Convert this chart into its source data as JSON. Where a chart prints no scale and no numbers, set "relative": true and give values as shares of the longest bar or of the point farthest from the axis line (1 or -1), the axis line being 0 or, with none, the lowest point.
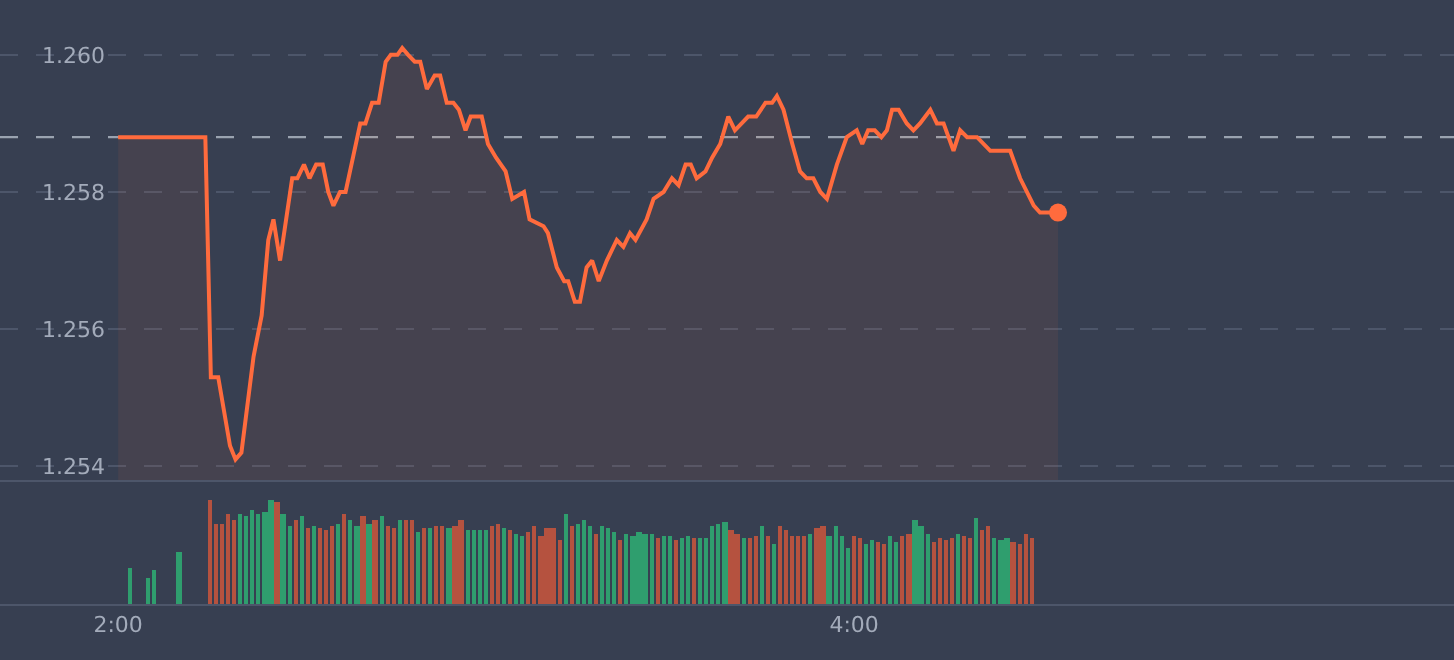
{
  "chart_data": [
    {
      "type": "area",
      "xlim": [
        1.679,
        5.63
      ],
      "ylim": [
        1.2538,
        1.2608
      ],
      "yticks": [
        {
          "value": 1.254,
          "label": "1.254"
        },
        {
          "value": 1.256,
          "label": "1.256"
        },
        {
          "value": 1.258,
          "label": "1.258"
        },
        {
          "value": 1.26,
          "label": "1.260"
        }
      ],
      "grid": "y",
      "tick_labels": "y",
      "ref_lines": [
        {
          "axis": "y",
          "value": 1.2588,
          "color": "#9aa3b0",
          "line_style": "dashed"
        }
      ],
      "series": [
        {
          "color": "#ff6b3d",
          "x": [
            2.0,
            2.237,
            2.252,
            2.272,
            2.304,
            2.319,
            2.335,
            2.368,
            2.39,
            2.408,
            2.422,
            2.44,
            2.473,
            2.487,
            2.505,
            2.52,
            2.538,
            2.556,
            2.571,
            2.585,
            2.603,
            2.618,
            2.658,
            2.672,
            2.69,
            2.708,
            2.727,
            2.741,
            2.759,
            2.772,
            2.788,
            2.806,
            2.821,
            2.839,
            2.86,
            2.875,
            2.893,
            2.911,
            2.926,
            2.944,
            2.958,
            2.973,
            2.988,
            3.005,
            3.027,
            3.053,
            3.071,
            3.103,
            3.118,
            3.156,
            3.168,
            3.192,
            3.212,
            3.223,
            3.241,
            3.255,
            3.273,
            3.288,
            3.306,
            3.328,
            3.355,
            3.373,
            3.391,
            3.406,
            3.436,
            3.455,
            3.482,
            3.505,
            3.523,
            3.542,
            3.556,
            3.572,
            3.596,
            3.614,
            3.636,
            3.658,
            3.676,
            3.712,
            3.734,
            3.759,
            3.777,
            3.79,
            3.808,
            3.832,
            3.853,
            3.871,
            3.889,
            3.908,
            3.926,
            3.953,
            3.98,
            4.007,
            4.022,
            4.038,
            4.056,
            4.074,
            4.089,
            4.103,
            4.121,
            4.143,
            4.161,
            4.179,
            4.207,
            4.225,
            4.243,
            4.27,
            4.288,
            4.307,
            4.334,
            4.37,
            4.407,
            4.424,
            4.451,
            4.488,
            4.505,
            4.554
          ],
          "values": [
            1.2588,
            1.2588,
            1.2553,
            1.2553,
            1.2543,
            1.2541,
            1.2542,
            1.2556,
            1.2562,
            1.2573,
            1.2576,
            1.257,
            1.2582,
            1.2582,
            1.2584,
            1.2582,
            1.2584,
            1.2584,
            1.258,
            1.2578,
            1.258,
            1.258,
            1.259,
            1.259,
            1.2593,
            1.2593,
            1.2599,
            1.26,
            1.26,
            1.2601,
            1.26,
            1.2599,
            1.2599,
            1.2595,
            1.2597,
            1.2597,
            1.2593,
            1.2593,
            1.2592,
            1.2589,
            1.2591,
            1.2591,
            1.2591,
            1.2587,
            1.2585,
            1.2583,
            1.2579,
            1.258,
            1.2576,
            1.2575,
            1.2574,
            1.2569,
            1.2567,
            1.2567,
            1.2564,
            1.2564,
            1.2569,
            1.257,
            1.2567,
            1.257,
            1.2573,
            1.2572,
            1.2574,
            1.2573,
            1.2576,
            1.2579,
            1.258,
            1.2582,
            1.2581,
            1.2584,
            1.2584,
            1.2582,
            1.2583,
            1.2585,
            1.2587,
            1.2591,
            1.2589,
            1.2591,
            1.2591,
            1.2593,
            1.2593,
            1.2594,
            1.2592,
            1.2587,
            1.2583,
            1.2582,
            1.2582,
            1.258,
            1.2579,
            1.2584,
            1.2588,
            1.2589,
            1.2587,
            1.2589,
            1.2589,
            1.2588,
            1.2589,
            1.2592,
            1.2592,
            1.259,
            1.2589,
            1.259,
            1.2592,
            1.259,
            1.259,
            1.2586,
            1.2589,
            1.2588,
            1.2588,
            1.2586,
            1.2586,
            1.2586,
            1.2582,
            1.2578,
            1.2577,
            1.2577
          ]
        },
        {
          "type": "scatter",
          "color": "#ff6b3d",
          "marker": "circle",
          "x": [
            4.554
          ],
          "values": [
            1.2577
          ]
        }
      ]
    },
    {
      "type": "bar",
      "relative": true,
      "xlim": [
        1.679,
        5.63
      ],
      "xticks": [
        {
          "value": 2,
          "label": "2:00"
        },
        {
          "value": 4,
          "label": "4:00"
        }
      ],
      "tick_labels": "x",
      "x": [
        2.033,
        2.083,
        2.1,
        2.167,
        2.25,
        2.267,
        2.283,
        2.3,
        2.317,
        2.333,
        2.35,
        2.367,
        2.383,
        2.4,
        2.417,
        2.433,
        2.45,
        2.467,
        2.483,
        2.5,
        2.517,
        2.533,
        2.55,
        2.567,
        2.583,
        2.6,
        2.617,
        2.633,
        2.65,
        2.667,
        2.683,
        2.7,
        2.717,
        2.733,
        2.75,
        2.767,
        2.783,
        2.8,
        2.817,
        2.833,
        2.85,
        2.867,
        2.883,
        2.9,
        2.917,
        2.933,
        2.95,
        2.967,
        2.983,
        3,
        3.017,
        3.033,
        3.05,
        3.067,
        3.083,
        3.1,
        3.117,
        3.133,
        3.15,
        3.167,
        3.183,
        3.2,
        3.217,
        3.233,
        3.25,
        3.267,
        3.283,
        3.3,
        3.317,
        3.333,
        3.35,
        3.367,
        3.383,
        3.4,
        3.417,
        3.433,
        3.45,
        3.467,
        3.483,
        3.5,
        3.517,
        3.533,
        3.55,
        3.567,
        3.583,
        3.6,
        3.617,
        3.633,
        3.65,
        3.667,
        3.683,
        3.7,
        3.717,
        3.733,
        3.75,
        3.767,
        3.783,
        3.8,
        3.817,
        3.833,
        3.85,
        3.867,
        3.883,
        3.9,
        3.917,
        3.933,
        3.95,
        3.967,
        3.983,
        4,
        4.017,
        4.033,
        4.05,
        4.067,
        4.083,
        4.1,
        4.117,
        4.133,
        4.15,
        4.167,
        4.183,
        4.2,
        4.217,
        4.233,
        4.25,
        4.267,
        4.283,
        4.3,
        4.317,
        4.333,
        4.35,
        4.367,
        4.383,
        4.4,
        4.417,
        4.433,
        4.45,
        4.467,
        4.483
      ],
      "values": [
        0.34,
        0.26,
        0.32,
        0.51,
        1.0,
        0.78,
        0.78,
        0.86,
        0.8,
        0.86,
        0.84,
        0.9,
        0.86,
        0.89,
        1.0,
        0.98,
        0.86,
        0.75,
        0.81,
        0.84,
        0.74,
        0.76,
        0.74,
        0.72,
        0.76,
        0.78,
        0.86,
        0.8,
        0.75,
        0.84,
        0.78,
        0.8,
        0.84,
        0.76,
        0.74,
        0.8,
        0.8,
        0.8,
        0.7,
        0.74,
        0.74,
        0.76,
        0.76,
        0.74,
        0.76,
        0.8,
        0.72,
        0.72,
        0.71,
        0.71,
        0.75,
        0.78,
        0.74,
        0.71,
        0.68,
        0.66,
        0.7,
        0.76,
        0.66,
        0.74,
        0.73,
        0.61,
        0.86,
        0.76,
        0.78,
        0.8,
        0.75,
        0.68,
        0.76,
        0.73,
        0.7,
        0.61,
        0.68,
        0.66,
        0.7,
        0.68,
        0.68,
        0.64,
        0.66,
        0.66,
        0.61,
        0.64,
        0.66,
        0.64,
        0.64,
        0.64,
        0.75,
        0.78,
        0.79,
        0.72,
        0.68,
        0.64,
        0.64,
        0.66,
        0.75,
        0.66,
        0.58,
        0.75,
        0.71,
        0.66,
        0.66,
        0.66,
        0.68,
        0.73,
        0.76,
        0.66,
        0.75,
        0.66,
        0.53,
        0.66,
        0.64,
        0.58,
        0.61,
        0.59,
        0.58,
        0.66,
        0.59,
        0.66,
        0.68,
        0.81,
        0.75,
        0.68,
        0.59,
        0.64,
        0.61,
        0.64,
        0.68,
        0.66,
        0.64,
        0.82,
        0.72,
        0.76,
        0.64,
        0.61,
        0.64,
        0.59,
        0.58,
        0.68,
        0.64
      ],
      "colors": [
        "#2f9e6e",
        "#2f9e6e",
        "#2f9e6e",
        "#2f9e6e",
        "#b5523f",
        "#b5523f",
        "#b5523f",
        "#b5523f",
        "#b5523f",
        "#2f9e6e",
        "#2f9e6e",
        "#2f9e6e",
        "#2f9e6e",
        "#2f9e6e",
        "#2f9e6e",
        "#b5523f",
        "#2f9e6e",
        "#2f9e6e",
        "#b5523f",
        "#2f9e6e",
        "#b5523f",
        "#2f9e6e",
        "#b5523f",
        "#b5523f",
        "#b5523f",
        "#2f9e6e",
        "#b5523f",
        "#2f9e6e",
        "#2f9e6e",
        "#b5523f",
        "#2f9e6e",
        "#b5523f",
        "#2f9e6e",
        "#b5523f",
        "#b5523f",
        "#2f9e6e",
        "#b5523f",
        "#b5523f",
        "#2f9e6e",
        "#b5523f",
        "#2f9e6e",
        "#b5523f",
        "#b5523f",
        "#2f9e6e",
        "#b5523f",
        "#b5523f",
        "#2f9e6e",
        "#2f9e6e",
        "#2f9e6e",
        "#2f9e6e",
        "#b5523f",
        "#b5523f",
        "#2f9e6e",
        "#b5523f",
        "#2f9e6e",
        "#2f9e6e",
        "#b5523f",
        "#b5523f",
        "#b5523f",
        "#b5523f",
        "#b5523f",
        "#b5523f",
        "#2f9e6e",
        "#b5523f",
        "#2f9e6e",
        "#2f9e6e",
        "#2f9e6e",
        "#b5523f",
        "#2f9e6e",
        "#2f9e6e",
        "#2f9e6e",
        "#b5523f",
        "#2f9e6e",
        "#2f9e6e",
        "#2f9e6e",
        "#2f9e6e",
        "#2f9e6e",
        "#b5523f",
        "#2f9e6e",
        "#2f9e6e",
        "#b5523f",
        "#2f9e6e",
        "#2f9e6e",
        "#b5523f",
        "#2f9e6e",
        "#2f9e6e",
        "#2f9e6e",
        "#2f9e6e",
        "#2f9e6e",
        "#b5523f",
        "#b5523f",
        "#2f9e6e",
        "#b5523f",
        "#b5523f",
        "#2f9e6e",
        "#b5523f",
        "#2f9e6e",
        "#b5523f",
        "#b5523f",
        "#b5523f",
        "#b5523f",
        "#b5523f",
        "#2f9e6e",
        "#b5523f",
        "#b5523f",
        "#2f9e6e",
        "#2f9e6e",
        "#2f9e6e",
        "#2f9e6e",
        "#b5523f",
        "#b5523f",
        "#2f9e6e",
        "#2f9e6e",
        "#b5523f",
        "#b5523f",
        "#2f9e6e",
        "#2f9e6e",
        "#b5523f",
        "#b5523f",
        "#2f9e6e",
        "#2f9e6e",
        "#2f9e6e",
        "#b5523f",
        "#b5523f",
        "#b5523f",
        "#b5523f",
        "#2f9e6e",
        "#b5523f",
        "#b5523f",
        "#2f9e6e",
        "#b5523f",
        "#b5523f",
        "#2f9e6e",
        "#2f9e6e",
        "#2f9e6e",
        "#b5523f",
        "#b5523f",
        "#b5523f",
        "#b5523f"
      ]
    }
  ]
}
